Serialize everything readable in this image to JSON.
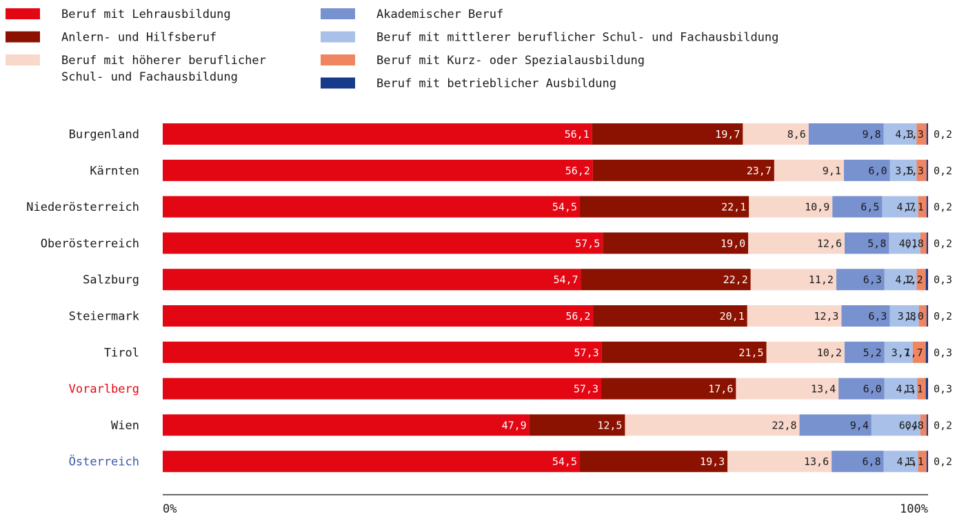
{
  "chart_data": {
    "type": "bar",
    "orientation": "horizontal",
    "stacked": true,
    "normalized": true,
    "xlim": [
      0,
      100
    ],
    "x_tick_labels": [
      "0%",
      "100%"
    ],
    "grid": false,
    "legend_position": "top",
    "categories": [
      "Burgenland",
      "Kärnten",
      "Niederösterreich",
      "Oberösterreich",
      "Salzburg",
      "Steiermark",
      "Tirol",
      "Vorarlberg",
      "Wien",
      "Österreich"
    ],
    "category_label_colors": [
      "#1a1a1a",
      "#1a1a1a",
      "#1a1a1a",
      "#1a1a1a",
      "#1a1a1a",
      "#1a1a1a",
      "#1a1a1a",
      "#e30613",
      "#1a1a1a",
      "#3d5aa8"
    ],
    "series": [
      {
        "name": "Beruf mit Lehrausbildung",
        "color": "#e30613",
        "text_color": "#ffffff",
        "values": [
          56.1,
          56.2,
          54.5,
          57.5,
          54.7,
          56.2,
          57.3,
          57.3,
          47.9,
          54.5
        ],
        "labels": [
          "56,1",
          "56,2",
          "54,5",
          "57,5",
          "54,7",
          "56,2",
          "57,3",
          "57,3",
          "47,9",
          "54,5"
        ]
      },
      {
        "name": "Anlern- und Hilfsberuf",
        "color": "#8b1200",
        "text_color": "#ffffff",
        "values": [
          19.7,
          23.7,
          22.1,
          19.0,
          22.2,
          20.1,
          21.5,
          17.6,
          12.5,
          19.3
        ],
        "labels": [
          "19,7",
          "23,7",
          "22,1",
          "19,0",
          "22,2",
          "20,1",
          "21,5",
          "17,6",
          "12,5",
          "19,3"
        ]
      },
      {
        "name": "Beruf mit höherer beruflicher Schul- und Fachausbildung",
        "color": "#f9d8cc",
        "text_color": "#1a1a1a",
        "values": [
          8.6,
          9.1,
          10.9,
          12.6,
          11.2,
          12.3,
          10.2,
          13.4,
          22.8,
          13.6
        ],
        "labels": [
          "8,6",
          "9,1",
          "10,9",
          "12,6",
          "11,2",
          "12,3",
          "10,2",
          "13,4",
          "22,8",
          "13,6"
        ]
      },
      {
        "name": "Akademischer Beruf",
        "color": "#7891cf",
        "text_color": "#1a1a1a",
        "values": [
          9.8,
          6.0,
          6.5,
          5.8,
          6.3,
          6.3,
          5.2,
          6.0,
          9.4,
          6.8
        ],
        "labels": [
          "9,8",
          "6,0",
          "6,5",
          "5,8",
          "6,3",
          "6,3",
          "5,2",
          "6,0",
          "9,4",
          "6,8"
        ]
      },
      {
        "name": "Beruf mit mittlerer beruflicher Schul- und Fachausbildung",
        "color": "#a9c1e8",
        "text_color": "#1a1a1a",
        "values": [
          4.3,
          3.5,
          4.7,
          4.1,
          4.2,
          3.8,
          3.7,
          4.3,
          6.4,
          4.5
        ],
        "labels": [
          "4,3",
          "3,5",
          "4,7",
          "4,1",
          "4,2",
          "3,8",
          "3,7",
          "4,3",
          "6,4",
          "4,5"
        ]
      },
      {
        "name": "Beruf mit Kurz- oder Spezialausbildung",
        "color": "#f08562",
        "text_color": "#1a1a1a",
        "values": [
          1.3,
          1.3,
          1.1,
          0.8,
          1.2,
          1.0,
          1.7,
          1.1,
          0.8,
          1.1
        ],
        "labels": [
          "1,3",
          "1,3",
          "1,1",
          "0,8",
          "1,2",
          "1,0",
          "1,7",
          "1,1",
          "0,8",
          "1,1"
        ]
      },
      {
        "name": "Beruf mit betrieblicher Ausbildung",
        "color": "#173a8a",
        "text_color": "#1a1a1a",
        "values": [
          0.2,
          0.2,
          0.2,
          0.2,
          0.3,
          0.2,
          0.3,
          0.3,
          0.2,
          0.2
        ],
        "labels": [
          "0,2",
          "0,2",
          "0,2",
          "0,2",
          "0,3",
          "0,2",
          "0,3",
          "0,3",
          "0,2",
          "0,2"
        ]
      }
    ],
    "legend_columns": [
      [
        {
          "series": 0,
          "lines": [
            "Beruf mit Lehrausbildung"
          ]
        },
        {
          "series": 1,
          "lines": [
            "Anlern- und Hilfsberuf"
          ]
        },
        {
          "series": 2,
          "lines": [
            "Beruf mit höherer beruflicher",
            "Schul- und Fachausbildung"
          ]
        }
      ],
      [
        {
          "series": 3,
          "lines": [
            "Akademischer Beruf"
          ]
        },
        {
          "series": 4,
          "lines": [
            "Beruf mit mittlerer beruflicher Schul- und Fachausbildung"
          ]
        },
        {
          "series": 5,
          "lines": [
            "Beruf mit Kurz- oder Spezialausbildung"
          ]
        },
        {
          "series": 6,
          "lines": [
            "Beruf mit betrieblicher Ausbildung"
          ]
        }
      ]
    ],
    "axis_color": "#333333"
  }
}
